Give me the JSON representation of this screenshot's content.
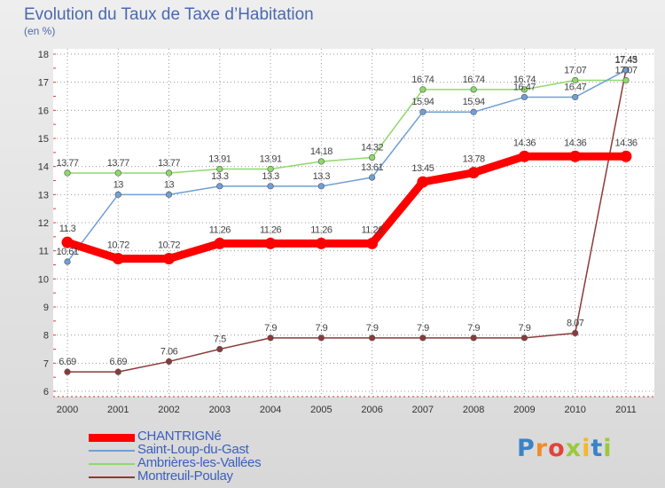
{
  "header": {
    "title": "Evolution du Taux de Taxe d’Habitation",
    "subtitle": "(en %)"
  },
  "colors": {
    "background_top": "#eeeeee",
    "background_bottom": "#d8d8d8",
    "plot_bg": "#ffffff",
    "title": "#4a69b0",
    "grid": "#999999"
  },
  "logo": {
    "letters": [
      {
        "ch": "P",
        "color": "#3b83c6"
      },
      {
        "ch": "r",
        "color": "#f28c28"
      },
      {
        "ch": "o",
        "color": "#e0443c"
      },
      {
        "ch": "x",
        "color": "#9bc93a"
      },
      {
        "ch": "i",
        "color": "#f2b82a"
      },
      {
        "ch": "t",
        "color": "#3b83c6"
      },
      {
        "ch": "i",
        "color": "#9bc93a"
      }
    ]
  },
  "chart_data": {
    "type": "line",
    "title": "Evolution du Taux de Taxe d’Habitation",
    "subtitle": "(en %)",
    "x": [
      "2000",
      "2001",
      "2002",
      "2003",
      "2004",
      "2005",
      "2006",
      "2007",
      "2008",
      "2009",
      "2010",
      "2011"
    ],
    "ylim": [
      6,
      18
    ],
    "yticks": [
      6,
      7,
      8,
      9,
      10,
      11,
      12,
      13,
      14,
      15,
      16,
      17,
      18
    ],
    "grid": true,
    "legend_position": "bottom-left",
    "series": [
      {
        "name": "CHANTRIGNé",
        "color": "#ff0000",
        "values": [
          11.3,
          10.72,
          10.72,
          11.26,
          11.26,
          11.26,
          11.26,
          13.45,
          13.78,
          14.36,
          14.36,
          14.36
        ],
        "labels": [
          "11.3",
          "10.72",
          "10.72",
          "11.26",
          "11.26",
          "11.26",
          "11.26",
          "13.45",
          "13.78",
          "14.36",
          "14.36",
          "14.36"
        ]
      },
      {
        "name": "Saint-Loup-du-Gast",
        "color": "#6f9fd8",
        "values": [
          10.61,
          13,
          13,
          13.3,
          13.3,
          13.3,
          13.61,
          15.94,
          15.94,
          16.47,
          16.47,
          17.43
        ],
        "labels": [
          "10.61",
          "13",
          "13",
          "13.3",
          "13.3",
          "13.3",
          "13.61",
          "15.94",
          "15.94",
          "16.47",
          "16.47",
          "17.43"
        ]
      },
      {
        "name": "Ambrières-les-Vallées",
        "color": "#8fd96a",
        "values": [
          13.77,
          13.77,
          13.77,
          13.91,
          13.91,
          14.18,
          14.32,
          16.74,
          16.74,
          16.74,
          17.07,
          17.07
        ],
        "labels": [
          "13.77",
          "13.77",
          "13.77",
          "13.91",
          "13.91",
          "14.18",
          "14.32",
          "16.74",
          "16.74",
          "16.74",
          "17.07",
          "17.07"
        ]
      },
      {
        "name": "Montreuil-Poulay",
        "color": "#8b3a3a",
        "values": [
          6.69,
          6.69,
          7.06,
          7.5,
          7.9,
          7.9,
          7.9,
          7.9,
          7.9,
          7.9,
          8.07,
          17.45
        ],
        "labels": [
          "6.69",
          "6.69",
          "7.06",
          "7.5",
          "7.9",
          "7.9",
          "7.9",
          "7.9",
          "7.9",
          "7.9",
          "8.07",
          "17.45"
        ]
      }
    ]
  }
}
